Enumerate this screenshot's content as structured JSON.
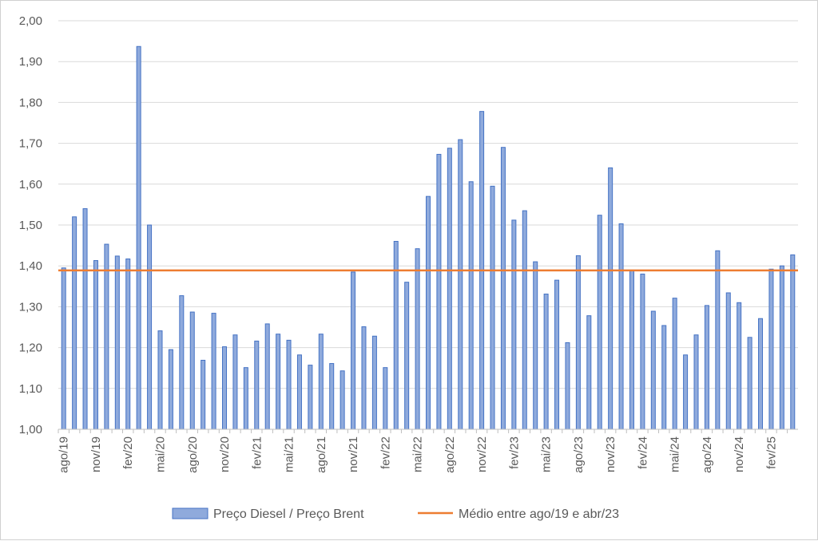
{
  "chart_data": {
    "type": "bar",
    "ylim": [
      1.0,
      2.0
    ],
    "yticks": [
      "1,00",
      "1,10",
      "1,20",
      "1,30",
      "1,40",
      "1,50",
      "1,60",
      "1,70",
      "1,80",
      "1,90",
      "2,00"
    ],
    "ytick_values": [
      1.0,
      1.1,
      1.2,
      1.3,
      1.4,
      1.5,
      1.6,
      1.7,
      1.8,
      1.9,
      2.0
    ],
    "grid": true,
    "legend_position": "bottom",
    "bar_color": "#8FAADC",
    "bar_edge_color": "#4472C4",
    "line_color": "#ED7D31",
    "categories": [
      "ago/19",
      "set/19",
      "out/19",
      "nov/19",
      "dez/19",
      "jan/20",
      "fev/20",
      "mar/20",
      "abr/20",
      "mai/20",
      "jun/20",
      "jul/20",
      "ago/20",
      "set/20",
      "out/20",
      "nov/20",
      "dez/20",
      "jan/21",
      "fev/21",
      "mar/21",
      "abr/21",
      "mai/21",
      "jun/21",
      "jul/21",
      "ago/21",
      "set/21",
      "out/21",
      "nov/21",
      "dez/21",
      "jan/22",
      "fev/22",
      "mar/22",
      "abr/22",
      "mai/22",
      "jun/22",
      "jul/22",
      "ago/22",
      "set/22",
      "out/22",
      "nov/22",
      "dez/22",
      "jan/23",
      "fev/23",
      "mar/23",
      "abr/23",
      "mai/23",
      "jun/23",
      "jul/23",
      "ago/23",
      "set/23",
      "out/23",
      "nov/23",
      "dez/23",
      "jan/24",
      "fev/24",
      "mar/24",
      "abr/24",
      "mai/24",
      "jun/24",
      "jul/24",
      "ago/24",
      "set/24",
      "out/24",
      "nov/24",
      "dez/24",
      "jan/25",
      "fev/25",
      "mar/25",
      "abr/25"
    ],
    "x_tick_labels": [
      "ago/19",
      "nov/19",
      "fev/20",
      "mai/20",
      "ago/20",
      "nov/20",
      "fev/21",
      "mai/21",
      "ago/21",
      "nov/21",
      "fev/22",
      "mai/22",
      "ago/22",
      "nov/22",
      "fev/23",
      "mai/23",
      "ago/23",
      "nov/23",
      "fev/24",
      "mai/24",
      "ago/24",
      "nov/24",
      "fev/25"
    ],
    "series": [
      {
        "name": "Preço Diesel / Preço Brent",
        "type": "bar",
        "values": [
          1.395,
          1.52,
          1.54,
          1.413,
          1.453,
          1.424,
          1.417,
          1.937,
          1.5,
          1.241,
          1.195,
          1.327,
          1.287,
          1.169,
          1.284,
          1.202,
          1.231,
          1.151,
          1.216,
          1.258,
          1.233,
          1.218,
          1.182,
          1.157,
          1.233,
          1.161,
          1.143,
          1.385,
          1.251,
          1.228,
          1.151,
          1.46,
          1.36,
          1.442,
          1.57,
          1.673,
          1.688,
          1.709,
          1.606,
          1.778,
          1.595,
          1.69,
          1.512,
          1.535,
          1.41,
          1.331,
          1.365,
          1.212,
          1.425,
          1.278,
          1.524,
          1.64,
          1.503,
          1.389,
          1.38,
          1.289,
          1.254,
          1.321,
          1.182,
          1.231,
          1.303,
          1.437,
          1.334,
          1.31,
          1.225,
          1.271,
          1.392,
          1.4,
          1.427
        ]
      },
      {
        "name": "Médio entre ago/19 e abr/23",
        "type": "line",
        "value": 1.389
      }
    ]
  }
}
